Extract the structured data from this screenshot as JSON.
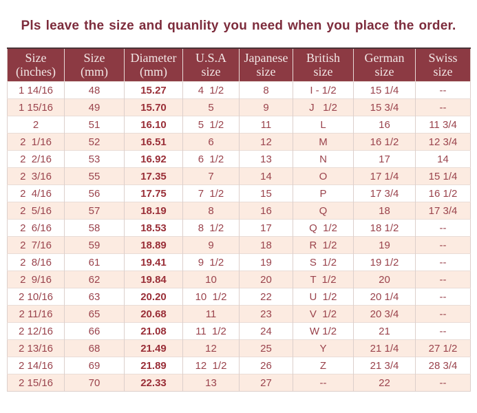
{
  "title": "Pls leave the size and quanlity you need when you place the order.",
  "colors": {
    "header_bg": "#8c3a43",
    "header_text": "#f2e7e6",
    "header_top_line": "#4a3437",
    "title_text": "#7d2c3c",
    "body_text": "#9a434c",
    "diameter_text": "#992e37",
    "alt_row_bg": "#fcebe1",
    "grid_line": "#dccfcb",
    "row_line": "#e9dcd6"
  },
  "table": {
    "header_lines": [
      [
        "Size",
        "(inches)"
      ],
      [
        "Size",
        "(mm)"
      ],
      [
        "Diameter",
        "(mm)"
      ],
      [
        "U.S.A",
        "size"
      ],
      [
        "Japanese",
        "size"
      ],
      [
        "British",
        "size"
      ],
      [
        "German",
        "size"
      ],
      [
        "Swiss",
        "size"
      ]
    ],
    "empty_placeholder": "--"
  },
  "chart_data": {
    "type": "table",
    "title": "Pls leave the size and quanlity you need when you place the order.",
    "columns": [
      "Size (inches)",
      "Size (mm)",
      "Diameter (mm)",
      "U.S.A size",
      "Japanese size",
      "British size",
      "German size",
      "Swiss size"
    ],
    "rows": [
      [
        "1 14/16",
        "48",
        "15.27",
        "4  1/2",
        "8",
        "I - 1/2",
        "15 1/4",
        "--"
      ],
      [
        "1 15/16",
        "49",
        "15.70",
        "5",
        "9",
        "J   1/2",
        "15 3/4",
        "--"
      ],
      [
        "2",
        "51",
        "16.10",
        "5  1/2",
        "11",
        "L",
        "16",
        "11 3/4"
      ],
      [
        "2  1/16",
        "52",
        "16.51",
        "6",
        "12",
        "M",
        "16 1/2",
        "12 3/4"
      ],
      [
        "2  2/16",
        "53",
        "16.92",
        "6  1/2",
        "13",
        "N",
        "17",
        "14"
      ],
      [
        "2  3/16",
        "55",
        "17.35",
        "7",
        "14",
        "O",
        "17 1/4",
        "15 1/4"
      ],
      [
        "2  4/16",
        "56",
        "17.75",
        "7  1/2",
        "15",
        "P",
        "17 3/4",
        "16 1/2"
      ],
      [
        "2  5/16",
        "57",
        "18.19",
        "8",
        "16",
        "Q",
        "18",
        "17 3/4"
      ],
      [
        "2  6/16",
        "58",
        "18.53",
        "8  1/2",
        "17",
        "Q  1/2",
        "18 1/2",
        "--"
      ],
      [
        "2  7/16",
        "59",
        "18.89",
        "9",
        "18",
        "R  1/2",
        "19",
        "--"
      ],
      [
        "2  8/16",
        "61",
        "19.41",
        "9  1/2",
        "19",
        "S  1/2",
        "19 1/2",
        "--"
      ],
      [
        "2  9/16",
        "62",
        "19.84",
        "10",
        "20",
        "T  1/2",
        "20",
        "--"
      ],
      [
        "2 10/16",
        "63",
        "20.20",
        "10  1/2",
        "22",
        "U  1/2",
        "20 1/4",
        "--"
      ],
      [
        "2 11/16",
        "65",
        "20.68",
        "11",
        "23",
        "V  1/2",
        "20 3/4",
        "--"
      ],
      [
        "2 12/16",
        "66",
        "21.08",
        "11  1/2",
        "24",
        "W 1/2",
        "21",
        "--"
      ],
      [
        "2 13/16",
        "68",
        "21.49",
        "12",
        "25",
        "Y",
        "21 1/4",
        "27 1/2"
      ],
      [
        "2 14/16",
        "69",
        "21.89",
        "12  1/2",
        "26",
        "Z",
        "21 3/4",
        "28 3/4"
      ],
      [
        "2 15/16",
        "70",
        "22.33",
        "13",
        "27",
        "--",
        "22",
        "--"
      ]
    ],
    "layout": {
      "header_style": "dark-maroon banner, white serif text, two lines per header",
      "row_striping": "odd rows white, even rows light peach",
      "bold_column": "Diameter (mm)"
    }
  }
}
